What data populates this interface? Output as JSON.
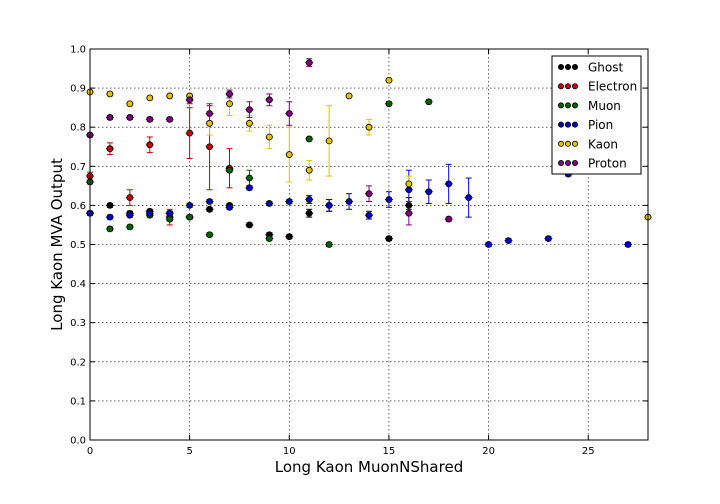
{
  "chart_data": {
    "type": "scatter",
    "title": "",
    "xlabel": "Long Kaon MuonNShared",
    "ylabel": "Long Kaon MVA Output",
    "xlim": [
      0,
      28
    ],
    "ylim": [
      0,
      1.0
    ],
    "xticks": [
      0,
      5,
      10,
      15,
      20,
      25
    ],
    "yticks": [
      0.0,
      0.1,
      0.2,
      0.3,
      0.4,
      0.5,
      0.6,
      0.7,
      0.8,
      0.9,
      1.0
    ],
    "xtick_labels": [
      "0",
      "5",
      "10",
      "15",
      "20",
      "25"
    ],
    "ytick_labels": [
      "0.0",
      "0.1",
      "0.2",
      "0.3",
      "0.4",
      "0.5",
      "0.6",
      "0.7",
      "0.8",
      "0.9",
      "1.0"
    ],
    "grid": true,
    "legend_position": "top-right",
    "series": [
      {
        "name": "Ghost",
        "color": "#000000",
        "x": [
          0,
          1,
          2,
          3,
          4,
          5,
          6,
          7,
          8,
          9,
          10,
          11,
          12,
          15,
          16
        ],
        "y": [
          0.58,
          0.6,
          0.58,
          0.585,
          0.58,
          0.57,
          0.59,
          0.6,
          0.55,
          0.525,
          0.52,
          0.58,
          0.6,
          0.515,
          0.6
        ],
        "err": [
          0.005,
          0.005,
          0.005,
          0.005,
          0.005,
          0.005,
          0.005,
          0.005,
          0.005,
          0.005,
          0.005,
          0.01,
          0.015,
          0.005,
          0.02
        ]
      },
      {
        "name": "Electron",
        "color": "#cc0000",
        "x": [
          0,
          1,
          2,
          3,
          4,
          5,
          6,
          7
        ],
        "y": [
          0.675,
          0.745,
          0.62,
          0.755,
          0.57,
          0.785,
          0.75,
          0.695
        ],
        "err": [
          0.01,
          0.015,
          0.02,
          0.02,
          0.02,
          0.065,
          0.11,
          0.05
        ]
      },
      {
        "name": "Muon",
        "color": "#006600",
        "x": [
          0,
          1,
          2,
          3,
          4,
          5,
          6,
          7,
          8,
          9,
          11,
          12,
          15,
          17
        ],
        "y": [
          0.66,
          0.54,
          0.545,
          0.575,
          0.565,
          0.57,
          0.525,
          0.69,
          0.67,
          0.515,
          0.77,
          0.5,
          0.86,
          0.865
        ],
        "err": [
          0.005,
          0.005,
          0.005,
          0.005,
          0.005,
          0.005,
          0.005,
          0.005,
          0.02,
          0.005,
          0.005,
          0.005,
          0.005,
          0.005
        ]
      },
      {
        "name": "Pion",
        "color": "#0000cc",
        "x": [
          0,
          1,
          2,
          3,
          4,
          5,
          6,
          7,
          8,
          9,
          10,
          11,
          12,
          13,
          14,
          15,
          16,
          17,
          18,
          19,
          20,
          21,
          23,
          24,
          27
        ],
        "y": [
          0.58,
          0.57,
          0.575,
          0.58,
          0.58,
          0.6,
          0.61,
          0.595,
          0.645,
          0.605,
          0.61,
          0.615,
          0.6,
          0.61,
          0.575,
          0.615,
          0.64,
          0.635,
          0.655,
          0.62,
          0.5,
          0.51,
          0.515,
          0.68,
          0.5
        ],
        "err": [
          0.005,
          0.005,
          0.005,
          0.005,
          0.005,
          0.005,
          0.005,
          0.005,
          0.005,
          0.005,
          0.005,
          0.01,
          0.015,
          0.02,
          0.01,
          0.02,
          0.05,
          0.03,
          0.05,
          0.05,
          0.005,
          0.005,
          0.005,
          0.005,
          0.005
        ]
      },
      {
        "name": "Kaon",
        "color": "#e6c200",
        "x": [
          0,
          1,
          2,
          3,
          4,
          5,
          6,
          7,
          8,
          9,
          10,
          11,
          12,
          13,
          14,
          15,
          16,
          28
        ],
        "y": [
          0.89,
          0.885,
          0.86,
          0.875,
          0.88,
          0.88,
          0.81,
          0.86,
          0.81,
          0.775,
          0.73,
          0.69,
          0.765,
          0.88,
          0.8,
          0.92,
          0.655,
          0.57
        ],
        "err": [
          0.005,
          0.005,
          0.005,
          0.005,
          0.005,
          0.005,
          0.03,
          0.03,
          0.02,
          0.03,
          0.07,
          0.025,
          0.09,
          0.005,
          0.02,
          0.005,
          0.02,
          0.005
        ]
      },
      {
        "name": "Proton",
        "color": "#800080",
        "x": [
          0,
          1,
          2,
          3,
          4,
          5,
          6,
          7,
          8,
          9,
          10,
          11,
          14,
          16,
          18
        ],
        "y": [
          0.78,
          0.825,
          0.825,
          0.82,
          0.82,
          0.87,
          0.835,
          0.885,
          0.845,
          0.87,
          0.835,
          0.965,
          0.63,
          0.58,
          0.565
        ],
        "err": [
          0.005,
          0.005,
          0.005,
          0.005,
          0.005,
          0.01,
          0.02,
          0.01,
          0.02,
          0.015,
          0.03,
          0.01,
          0.02,
          0.03,
          0.005
        ]
      }
    ]
  }
}
